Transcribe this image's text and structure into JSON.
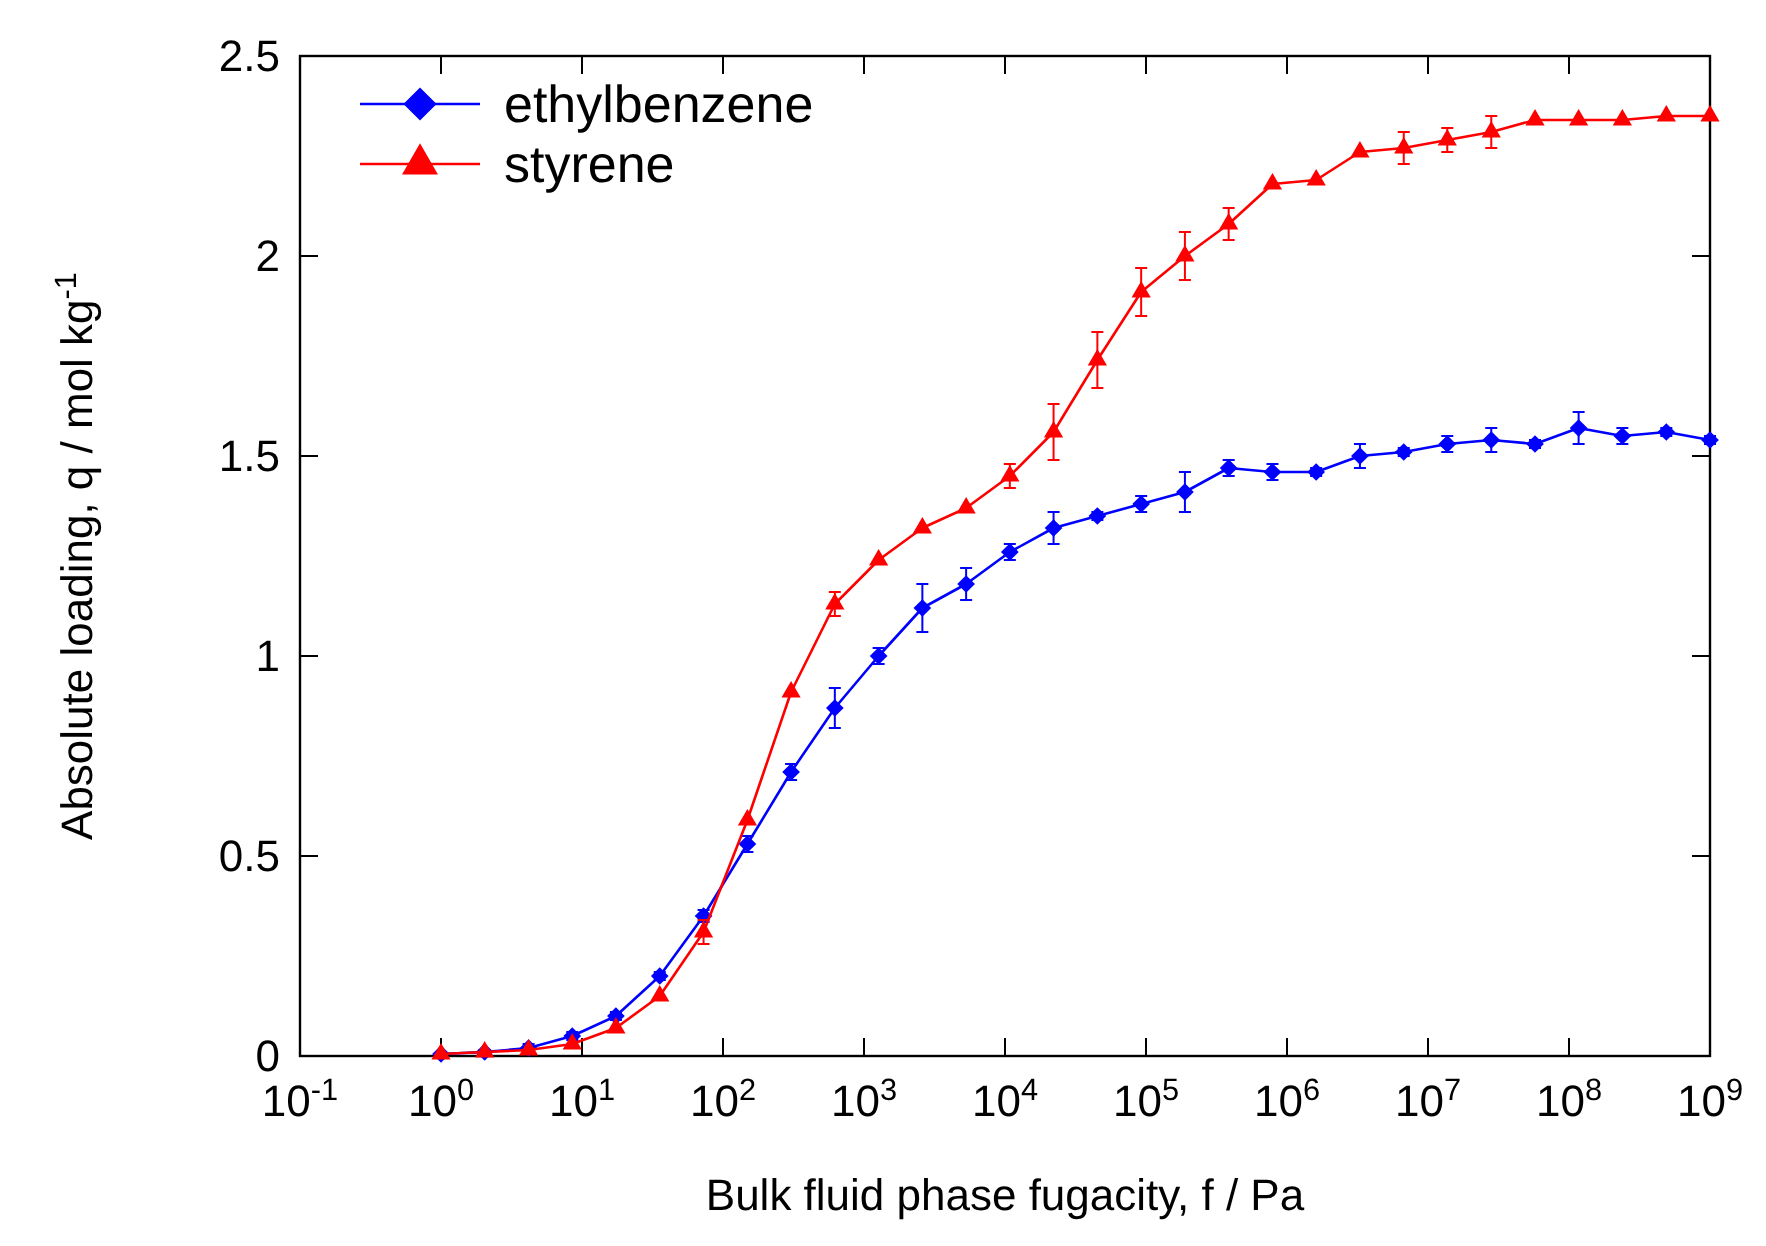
{
  "chart_data": {
    "type": "line",
    "xlabel": "Bulk fluid phase fugacity, f / Pa",
    "ylabel": "Absolute loading, q / mol kg$^{-1}$",
    "log": "x",
    "xlim": [
      0.1,
      1000000000
    ],
    "xticks": [
      {
        "value": 0.1,
        "label": "10$^{-1}$"
      },
      {
        "value": 1,
        "label": "10$^{0}$"
      },
      {
        "value": 10,
        "label": "10$^{1}$"
      },
      {
        "value": 100,
        "label": "10$^{2}$"
      },
      {
        "value": 1000,
        "label": "10$^{3}$"
      },
      {
        "value": 10000,
        "label": "10$^{4}$"
      },
      {
        "value": 100000,
        "label": "10$^{5}$"
      },
      {
        "value": 1000000,
        "label": "10$^{6}$"
      },
      {
        "value": 10000000,
        "label": "10$^{7}$"
      },
      {
        "value": 100000000,
        "label": "10$^{8}$"
      },
      {
        "value": 1000000000,
        "label": "10$^{9}$"
      }
    ],
    "ylim": [
      0,
      2.5
    ],
    "yticks": [
      0,
      0.5,
      1,
      1.5,
      2,
      2.5
    ],
    "legend": "top left",
    "x": [
      1,
      2.04,
      4.18,
      8.53,
      17.4,
      35.6,
      72.8,
      149,
      304,
      621,
      1270,
      2594,
      5300,
      10820,
      22100,
      45200,
      92400,
      188800,
      385700,
      788600,
      1610000,
      3290000,
      6730000,
      13700000,
      28100000,
      57400000,
      117000000,
      239000000,
      490000000,
      1000000000
    ],
    "series": [
      {
        "name": "ethylbenzene",
        "color": "#0000ff",
        "marker": "diamond",
        "values": [
          0.005,
          0.01,
          0.02,
          0.05,
          0.1,
          0.2,
          0.35,
          0.53,
          0.71,
          0.87,
          1.0,
          1.12,
          1.18,
          1.26,
          1.32,
          1.35,
          1.38,
          1.41,
          1.47,
          1.46,
          1.46,
          1.5,
          1.51,
          1.53,
          1.54,
          1.53,
          1.57,
          1.55,
          1.56,
          1.54
        ],
        "errors": [
          0.005,
          0.005,
          0.01,
          0.01,
          0.01,
          0.01,
          0.015,
          0.02,
          0.02,
          0.05,
          0.02,
          0.06,
          0.04,
          0.02,
          0.04,
          0.01,
          0.02,
          0.05,
          0.02,
          0.02,
          0.01,
          0.03,
          0.01,
          0.02,
          0.03,
          0.01,
          0.04,
          0.02,
          0.01,
          0.01
        ]
      },
      {
        "name": "styrene",
        "color": "#ff0000",
        "marker": "triangle",
        "values": [
          0.005,
          0.01,
          0.015,
          0.03,
          0.07,
          0.15,
          0.31,
          0.59,
          0.91,
          1.13,
          1.24,
          1.32,
          1.37,
          1.45,
          1.56,
          1.74,
          1.91,
          2.0,
          2.08,
          2.18,
          2.19,
          2.26,
          2.27,
          2.29,
          2.31,
          2.34,
          2.34,
          2.34,
          2.35,
          2.35
        ],
        "errors": [
          null,
          null,
          null,
          null,
          null,
          null,
          0.03,
          null,
          null,
          0.03,
          null,
          null,
          null,
          0.03,
          0.07,
          0.07,
          0.06,
          0.06,
          0.04,
          null,
          null,
          null,
          0.04,
          0.03,
          0.04,
          null,
          null,
          null,
          null,
          null
        ]
      }
    ]
  }
}
